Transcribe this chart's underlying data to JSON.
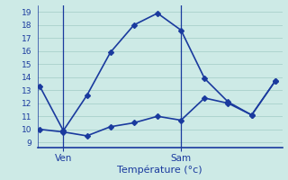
{
  "x_high": [
    0,
    1,
    2,
    3,
    4,
    5,
    6,
    7,
    8,
    9,
    10
  ],
  "y_high": [
    13.3,
    9.9,
    12.6,
    15.9,
    18.0,
    18.9,
    17.6,
    13.9,
    12.1,
    11.1,
    13.7
  ],
  "x_low": [
    0,
    1,
    2,
    3,
    4,
    5,
    6,
    7,
    8,
    9,
    10
  ],
  "y_low": [
    10.0,
    9.8,
    9.5,
    10.2,
    10.5,
    11.0,
    10.7,
    12.4,
    12.0,
    11.1,
    13.7
  ],
  "ven_x": 1.0,
  "sam_x": 6.0,
  "x_ticks": [
    1.0,
    6.0
  ],
  "x_tick_labels": [
    "Ven",
    "Sam"
  ],
  "y_ticks": [
    9,
    10,
    11,
    12,
    13,
    14,
    15,
    16,
    17,
    18,
    19
  ],
  "ylim": [
    8.6,
    19.5
  ],
  "xlim": [
    -0.1,
    10.3
  ],
  "xlabel": "Température (°c)",
  "line_color": "#1a3a9e",
  "bg_color": "#cdeae6",
  "grid_color": "#aed4cf",
  "marker": "D",
  "marker_size": 3,
  "linewidth": 1.2
}
